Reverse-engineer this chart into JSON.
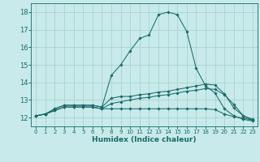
{
  "xlabel": "Humidex (Indice chaleur)",
  "bg_color": "#c8eaea",
  "grid_color": "#a8d4d0",
  "line_color": "#1a6b6a",
  "spine_color": "#2a7a7a",
  "xlim": [
    -0.5,
    23.5
  ],
  "ylim": [
    11.5,
    18.5
  ],
  "xticks": [
    0,
    1,
    2,
    3,
    4,
    5,
    6,
    7,
    8,
    9,
    10,
    11,
    12,
    13,
    14,
    15,
    16,
    17,
    18,
    19,
    20,
    21,
    22,
    23
  ],
  "yticks": [
    12,
    13,
    14,
    15,
    16,
    17,
    18
  ],
  "series": [
    [
      12.1,
      12.2,
      12.5,
      12.7,
      12.7,
      12.7,
      12.7,
      12.6,
      14.4,
      15.0,
      15.8,
      16.5,
      16.7,
      17.85,
      18.0,
      17.85,
      16.9,
      14.8,
      13.8,
      13.4,
      12.5,
      12.1,
      11.9,
      11.8
    ],
    [
      12.1,
      12.2,
      12.5,
      12.7,
      12.7,
      12.7,
      12.7,
      12.6,
      13.1,
      13.2,
      13.2,
      13.3,
      13.35,
      13.45,
      13.5,
      13.6,
      13.7,
      13.8,
      13.9,
      13.85,
      13.35,
      12.55,
      12.1,
      11.9
    ],
    [
      12.1,
      12.2,
      12.4,
      12.6,
      12.6,
      12.6,
      12.6,
      12.5,
      12.5,
      12.5,
      12.5,
      12.5,
      12.5,
      12.5,
      12.5,
      12.5,
      12.5,
      12.5,
      12.5,
      12.45,
      12.2,
      12.05,
      11.97,
      11.85
    ],
    [
      12.1,
      12.2,
      12.4,
      12.6,
      12.6,
      12.6,
      12.6,
      12.5,
      12.8,
      12.9,
      13.0,
      13.1,
      13.15,
      13.25,
      13.3,
      13.4,
      13.5,
      13.55,
      13.65,
      13.6,
      13.3,
      12.75,
      12.1,
      11.85
    ]
  ]
}
